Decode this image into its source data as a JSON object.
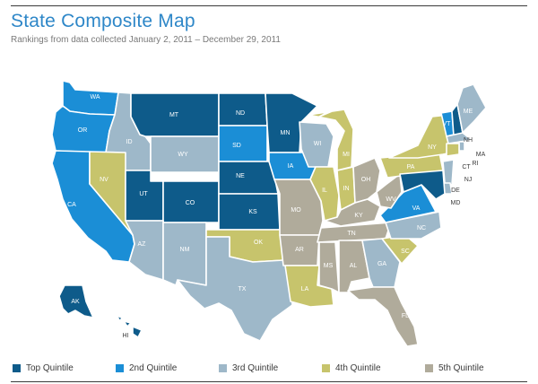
{
  "title": "State Composite Map",
  "subtitle": "Rankings from data collected January 2, 2011 – December 29, 2011",
  "colors": {
    "top": "#0e5b8a",
    "q2": "#1b8ed6",
    "q3": "#9eb8c9",
    "q4": "#c7c46c",
    "q5": "#b0ab9b"
  },
  "legend": [
    {
      "key": "top",
      "label": "Top Quintile"
    },
    {
      "key": "q2",
      "label": "2nd Quintile"
    },
    {
      "key": "q3",
      "label": "3rd Quintile"
    },
    {
      "key": "q4",
      "label": "4th Quintile"
    },
    {
      "key": "q5",
      "label": "5th Quintile"
    }
  ],
  "states": [
    {
      "abbr": "WA",
      "quintile": "q2"
    },
    {
      "abbr": "OR",
      "quintile": "q2"
    },
    {
      "abbr": "CA",
      "quintile": "q2"
    },
    {
      "abbr": "ID",
      "quintile": "q3"
    },
    {
      "abbr": "NV",
      "quintile": "q4"
    },
    {
      "abbr": "MT",
      "quintile": "top"
    },
    {
      "abbr": "WY",
      "quintile": "q3"
    },
    {
      "abbr": "UT",
      "quintile": "top"
    },
    {
      "abbr": "CO",
      "quintile": "top"
    },
    {
      "abbr": "AZ",
      "quintile": "q3"
    },
    {
      "abbr": "NM",
      "quintile": "q3"
    },
    {
      "abbr": "ND",
      "quintile": "top"
    },
    {
      "abbr": "SD",
      "quintile": "q2"
    },
    {
      "abbr": "NE",
      "quintile": "top"
    },
    {
      "abbr": "KS",
      "quintile": "top"
    },
    {
      "abbr": "OK",
      "quintile": "q4"
    },
    {
      "abbr": "TX",
      "quintile": "q3"
    },
    {
      "abbr": "MN",
      "quintile": "top"
    },
    {
      "abbr": "IA",
      "quintile": "q2"
    },
    {
      "abbr": "MO",
      "quintile": "q5"
    },
    {
      "abbr": "AR",
      "quintile": "q5"
    },
    {
      "abbr": "LA",
      "quintile": "q4"
    },
    {
      "abbr": "WI",
      "quintile": "q3"
    },
    {
      "abbr": "IL",
      "quintile": "q4"
    },
    {
      "abbr": "MI",
      "quintile": "q4"
    },
    {
      "abbr": "IN",
      "quintile": "q4"
    },
    {
      "abbr": "OH",
      "quintile": "q5"
    },
    {
      "abbr": "KY",
      "quintile": "q5"
    },
    {
      "abbr": "TN",
      "quintile": "q5"
    },
    {
      "abbr": "MS",
      "quintile": "q5"
    },
    {
      "abbr": "AL",
      "quintile": "q5"
    },
    {
      "abbr": "GA",
      "quintile": "q3"
    },
    {
      "abbr": "FL",
      "quintile": "q5"
    },
    {
      "abbr": "SC",
      "quintile": "q4"
    },
    {
      "abbr": "NC",
      "quintile": "q3"
    },
    {
      "abbr": "VA",
      "quintile": "q2"
    },
    {
      "abbr": "WV",
      "quintile": "q5"
    },
    {
      "abbr": "PA",
      "quintile": "q4"
    },
    {
      "abbr": "NY",
      "quintile": "q4"
    },
    {
      "abbr": "VT",
      "quintile": "q2"
    },
    {
      "abbr": "NH",
      "quintile": "top"
    },
    {
      "abbr": "ME",
      "quintile": "q3"
    },
    {
      "abbr": "MA",
      "quintile": "q3"
    },
    {
      "abbr": "RI",
      "quintile": "q3"
    },
    {
      "abbr": "CT",
      "quintile": "q4"
    },
    {
      "abbr": "NJ",
      "quintile": "q3"
    },
    {
      "abbr": "DE",
      "quintile": "q3"
    },
    {
      "abbr": "MD",
      "quintile": "top"
    },
    {
      "abbr": "AK",
      "quintile": "top"
    },
    {
      "abbr": "HI",
      "quintile": "top"
    }
  ]
}
